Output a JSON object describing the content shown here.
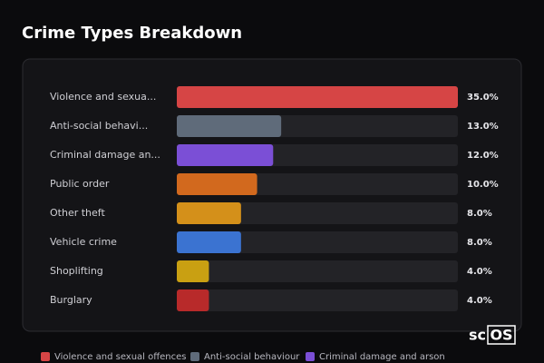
{
  "chart_data": {
    "type": "bar",
    "orientation": "horizontal",
    "title": "Crime Types Breakdown",
    "categories": [
      "Violence and sexua...",
      "Anti-social behavi...",
      "Criminal damage an...",
      "Public order",
      "Other theft",
      "Vehicle crime",
      "Shoplifting",
      "Burglary"
    ],
    "values": [
      35,
      13,
      12,
      10,
      8,
      8,
      4,
      4
    ],
    "value_labels": [
      "35.0%",
      "13.0%",
      "12.0%",
      "10.0%",
      "8.0%",
      "8.0%",
      "4.0%",
      "4.0%"
    ],
    "colors": [
      "#d64545",
      "#5f6b7a",
      "#7b4fd6",
      "#d2691e",
      "#d4901a",
      "#3b73d1",
      "#c9a012",
      "#b82a2a"
    ],
    "xlim": [
      0,
      35
    ],
    "legend": [
      {
        "name": "Violence and sexual offences",
        "color": "#d64545"
      },
      {
        "name": "Anti-social behaviour",
        "color": "#5f6b7a"
      },
      {
        "name": "Criminal damage and arson",
        "color": "#7b4fd6"
      }
    ]
  },
  "logo": {
    "prefix": "sc",
    "boxed": "OS"
  }
}
